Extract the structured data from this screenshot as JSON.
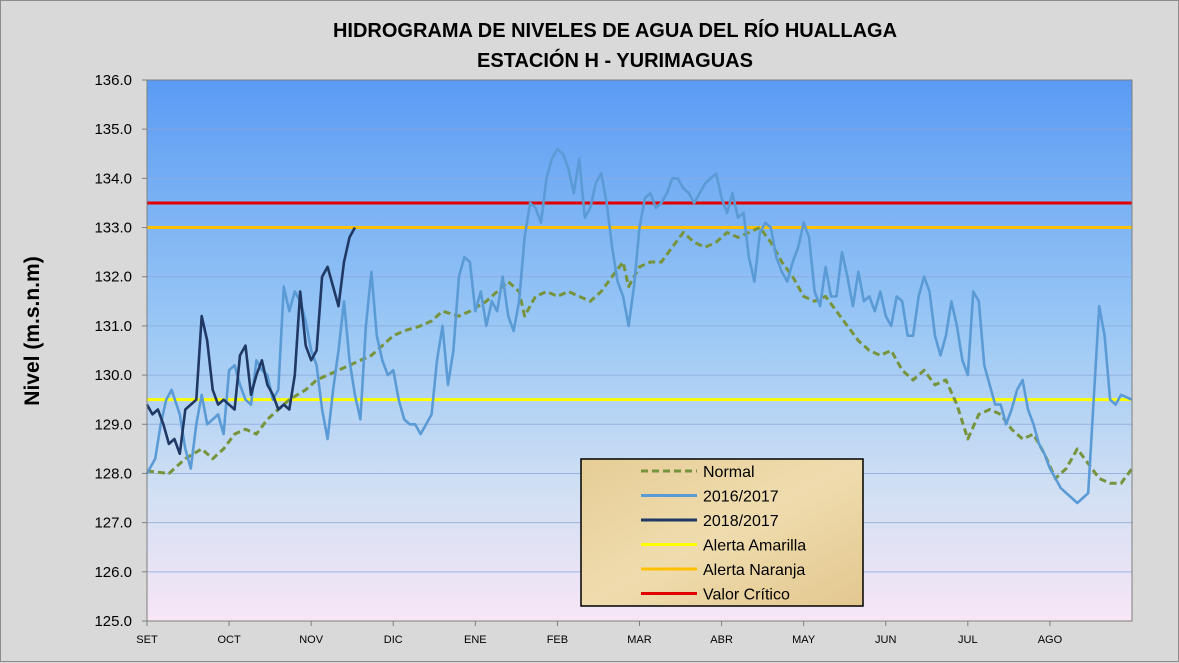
{
  "chart_data": {
    "type": "line",
    "title": "HIDROGRAMA DE NIVELES DE AGUA DEL RÍO HUALLAGA",
    "subtitle": "ESTACIÓN H - YURIMAGUAS",
    "ylabel": "Nivel (m.s.n.m)",
    "ylim": [
      125.0,
      136.0
    ],
    "yticks": [
      "125.0",
      "126.0",
      "127.0",
      "128.0",
      "129.0",
      "130.0",
      "131.0",
      "132.0",
      "133.0",
      "134.0",
      "135.0",
      "136.0"
    ],
    "months": [
      "SET",
      "OCT",
      "NOV",
      "DIC",
      "ENE",
      "FEB",
      "MAR",
      "ABR",
      "MAY",
      "JUN",
      "JUL",
      "AGO"
    ],
    "xrange_days": [
      0,
      360
    ],
    "grid": true,
    "legend_position": "bottom-center",
    "thresholds": [
      {
        "name": "Alerta Amarilla",
        "value": 129.5,
        "color": "#ffff00"
      },
      {
        "name": "Alerta Naranja",
        "value": 133.0,
        "color": "#ffc000"
      },
      {
        "name": "Valor Crítico",
        "value": 133.5,
        "color": "#e00000"
      }
    ],
    "series": [
      {
        "name": "Normal",
        "color": "#77933c",
        "dash": true,
        "points": [
          [
            0,
            128.05
          ],
          [
            8,
            128.0
          ],
          [
            14,
            128.3
          ],
          [
            20,
            128.5
          ],
          [
            24,
            128.3
          ],
          [
            28,
            128.5
          ],
          [
            32,
            128.8
          ],
          [
            36,
            128.9
          ],
          [
            40,
            128.8
          ],
          [
            44,
            129.1
          ],
          [
            48,
            129.3
          ],
          [
            52,
            129.5
          ],
          [
            58,
            129.7
          ],
          [
            62,
            129.9
          ],
          [
            66,
            130.0
          ],
          [
            70,
            130.1
          ],
          [
            74,
            130.2
          ],
          [
            78,
            130.3
          ],
          [
            82,
            130.4
          ],
          [
            86,
            130.6
          ],
          [
            90,
            130.8
          ],
          [
            94,
            130.9
          ],
          [
            100,
            131.0
          ],
          [
            104,
            131.1
          ],
          [
            108,
            131.3
          ],
          [
            114,
            131.2
          ],
          [
            118,
            131.3
          ],
          [
            124,
            131.5
          ],
          [
            128,
            131.7
          ],
          [
            132,
            131.9
          ],
          [
            136,
            131.7
          ],
          [
            138,
            131.2
          ],
          [
            142,
            131.6
          ],
          [
            146,
            131.7
          ],
          [
            150,
            131.6
          ],
          [
            154,
            131.7
          ],
          [
            158,
            131.6
          ],
          [
            162,
            131.5
          ],
          [
            166,
            131.7
          ],
          [
            170,
            132.0
          ],
          [
            174,
            132.3
          ],
          [
            176,
            131.8
          ],
          [
            180,
            132.2
          ],
          [
            184,
            132.3
          ],
          [
            188,
            132.3
          ],
          [
            192,
            132.6
          ],
          [
            196,
            132.9
          ],
          [
            200,
            132.7
          ],
          [
            204,
            132.6
          ],
          [
            208,
            132.7
          ],
          [
            212,
            132.9
          ],
          [
            216,
            132.8
          ],
          [
            220,
            132.9
          ],
          [
            224,
            133.0
          ],
          [
            228,
            132.7
          ],
          [
            232,
            132.3
          ],
          [
            236,
            132.0
          ],
          [
            240,
            131.6
          ],
          [
            244,
            131.5
          ],
          [
            248,
            131.6
          ],
          [
            252,
            131.3
          ],
          [
            256,
            131.0
          ],
          [
            260,
            130.7
          ],
          [
            264,
            130.5
          ],
          [
            268,
            130.4
          ],
          [
            272,
            130.5
          ],
          [
            276,
            130.1
          ],
          [
            280,
            129.9
          ],
          [
            284,
            130.1
          ],
          [
            288,
            129.8
          ],
          [
            292,
            129.9
          ],
          [
            296,
            129.4
          ],
          [
            300,
            128.7
          ],
          [
            304,
            129.2
          ],
          [
            308,
            129.3
          ],
          [
            312,
            129.2
          ],
          [
            316,
            128.9
          ],
          [
            320,
            128.7
          ],
          [
            324,
            128.8
          ],
          [
            328,
            128.4
          ],
          [
            332,
            127.9
          ],
          [
            336,
            128.1
          ],
          [
            340,
            128.5
          ],
          [
            344,
            128.2
          ],
          [
            348,
            127.9
          ],
          [
            352,
            127.8
          ],
          [
            356,
            127.8
          ],
          [
            360,
            128.1
          ]
        ]
      },
      {
        "name": "2016/2017",
        "color": "#5b9bd5",
        "dash": false,
        "points": [
          [
            0,
            128.0
          ],
          [
            3,
            128.3
          ],
          [
            5,
            129.0
          ],
          [
            7,
            129.5
          ],
          [
            9,
            129.7
          ],
          [
            12,
            129.2
          ],
          [
            14,
            128.5
          ],
          [
            16,
            128.1
          ],
          [
            18,
            129.0
          ],
          [
            20,
            129.6
          ],
          [
            22,
            129.0
          ],
          [
            24,
            129.1
          ],
          [
            26,
            129.2
          ],
          [
            28,
            128.8
          ],
          [
            30,
            130.1
          ],
          [
            32,
            130.2
          ],
          [
            34,
            129.8
          ],
          [
            36,
            129.5
          ],
          [
            38,
            129.4
          ],
          [
            40,
            130.3
          ],
          [
            42,
            130.1
          ],
          [
            44,
            130.0
          ],
          [
            46,
            129.5
          ],
          [
            48,
            129.7
          ],
          [
            50,
            131.8
          ],
          [
            52,
            131.3
          ],
          [
            54,
            131.7
          ],
          [
            56,
            131.5
          ],
          [
            58,
            131.1
          ],
          [
            60,
            130.5
          ],
          [
            62,
            130.2
          ],
          [
            64,
            129.3
          ],
          [
            66,
            128.7
          ],
          [
            68,
            129.7
          ],
          [
            70,
            130.5
          ],
          [
            72,
            131.5
          ],
          [
            74,
            130.3
          ],
          [
            76,
            129.6
          ],
          [
            78,
            129.1
          ],
          [
            80,
            131.0
          ],
          [
            82,
            132.1
          ],
          [
            84,
            130.8
          ],
          [
            86,
            130.3
          ],
          [
            88,
            130.0
          ],
          [
            90,
            130.1
          ],
          [
            92,
            129.5
          ],
          [
            94,
            129.1
          ],
          [
            96,
            129.0
          ],
          [
            98,
            129.0
          ],
          [
            100,
            128.8
          ],
          [
            102,
            129.0
          ],
          [
            104,
            129.2
          ],
          [
            106,
            130.3
          ],
          [
            108,
            131.0
          ],
          [
            110,
            129.8
          ],
          [
            112,
            130.5
          ],
          [
            114,
            132.0
          ],
          [
            116,
            132.4
          ],
          [
            118,
            132.3
          ],
          [
            120,
            131.3
          ],
          [
            122,
            131.7
          ],
          [
            124,
            131.0
          ],
          [
            126,
            131.5
          ],
          [
            128,
            131.3
          ],
          [
            130,
            132.0
          ],
          [
            132,
            131.2
          ],
          [
            134,
            130.9
          ],
          [
            136,
            131.5
          ],
          [
            138,
            132.8
          ],
          [
            140,
            133.5
          ],
          [
            142,
            133.4
          ],
          [
            144,
            133.1
          ],
          [
            146,
            134.0
          ],
          [
            148,
            134.4
          ],
          [
            150,
            134.6
          ],
          [
            152,
            134.5
          ],
          [
            154,
            134.2
          ],
          [
            156,
            133.7
          ],
          [
            158,
            134.4
          ],
          [
            160,
            133.2
          ],
          [
            162,
            133.4
          ],
          [
            164,
            133.9
          ],
          [
            166,
            134.1
          ],
          [
            168,
            133.5
          ],
          [
            170,
            132.6
          ],
          [
            172,
            131.9
          ],
          [
            174,
            131.6
          ],
          [
            176,
            131.0
          ],
          [
            178,
            131.8
          ],
          [
            180,
            133.0
          ],
          [
            182,
            133.6
          ],
          [
            184,
            133.7
          ],
          [
            186,
            133.4
          ],
          [
            188,
            133.5
          ],
          [
            190,
            133.7
          ],
          [
            192,
            134.0
          ],
          [
            194,
            134.0
          ],
          [
            196,
            133.8
          ],
          [
            198,
            133.7
          ],
          [
            200,
            133.5
          ],
          [
            202,
            133.7
          ],
          [
            204,
            133.9
          ],
          [
            206,
            134.0
          ],
          [
            208,
            134.1
          ],
          [
            210,
            133.6
          ],
          [
            212,
            133.3
          ],
          [
            214,
            133.7
          ],
          [
            216,
            133.2
          ],
          [
            218,
            133.3
          ],
          [
            220,
            132.4
          ],
          [
            222,
            131.9
          ],
          [
            224,
            132.9
          ],
          [
            226,
            133.1
          ],
          [
            228,
            133.0
          ],
          [
            230,
            132.4
          ],
          [
            232,
            132.1
          ],
          [
            234,
            131.9
          ],
          [
            236,
            132.3
          ],
          [
            238,
            132.6
          ],
          [
            240,
            133.1
          ],
          [
            242,
            132.8
          ],
          [
            244,
            131.7
          ],
          [
            246,
            131.4
          ],
          [
            248,
            132.2
          ],
          [
            250,
            131.6
          ],
          [
            252,
            131.6
          ],
          [
            254,
            132.5
          ],
          [
            256,
            132.0
          ],
          [
            258,
            131.4
          ],
          [
            260,
            132.1
          ],
          [
            262,
            131.5
          ],
          [
            264,
            131.6
          ],
          [
            266,
            131.3
          ],
          [
            268,
            131.7
          ],
          [
            270,
            131.2
          ],
          [
            272,
            131.0
          ],
          [
            274,
            131.6
          ],
          [
            276,
            131.5
          ],
          [
            278,
            130.8
          ],
          [
            280,
            130.8
          ],
          [
            282,
            131.6
          ],
          [
            284,
            132.0
          ],
          [
            286,
            131.7
          ],
          [
            288,
            130.8
          ],
          [
            290,
            130.4
          ],
          [
            292,
            130.8
          ],
          [
            294,
            131.5
          ],
          [
            296,
            131.0
          ],
          [
            298,
            130.3
          ],
          [
            300,
            130.0
          ],
          [
            302,
            131.7
          ],
          [
            304,
            131.5
          ],
          [
            306,
            130.2
          ],
          [
            308,
            129.8
          ],
          [
            310,
            129.4
          ],
          [
            312,
            129.4
          ],
          [
            314,
            129.0
          ],
          [
            316,
            129.3
          ],
          [
            318,
            129.7
          ],
          [
            320,
            129.9
          ],
          [
            322,
            129.3
          ],
          [
            324,
            129.0
          ],
          [
            326,
            128.6
          ],
          [
            328,
            128.4
          ],
          [
            330,
            128.1
          ],
          [
            332,
            127.9
          ],
          [
            334,
            127.7
          ],
          [
            336,
            127.6
          ],
          [
            338,
            127.5
          ],
          [
            340,
            127.4
          ],
          [
            342,
            127.5
          ],
          [
            344,
            127.6
          ],
          [
            346,
            129.5
          ],
          [
            348,
            131.4
          ],
          [
            350,
            130.8
          ],
          [
            352,
            129.5
          ],
          [
            354,
            129.4
          ],
          [
            356,
            129.6
          ],
          [
            360,
            129.5
          ]
        ]
      },
      {
        "name": "2018/2017",
        "color": "#1f3864",
        "dash": false,
        "points": [
          [
            0,
            129.4
          ],
          [
            2,
            129.2
          ],
          [
            4,
            129.3
          ],
          [
            6,
            129.0
          ],
          [
            8,
            128.6
          ],
          [
            10,
            128.7
          ],
          [
            12,
            128.4
          ],
          [
            14,
            129.3
          ],
          [
            16,
            129.4
          ],
          [
            18,
            129.5
          ],
          [
            20,
            131.2
          ],
          [
            22,
            130.7
          ],
          [
            24,
            129.7
          ],
          [
            26,
            129.4
          ],
          [
            28,
            129.5
          ],
          [
            30,
            129.4
          ],
          [
            32,
            129.3
          ],
          [
            34,
            130.4
          ],
          [
            36,
            130.6
          ],
          [
            38,
            129.6
          ],
          [
            40,
            130.0
          ],
          [
            42,
            130.3
          ],
          [
            44,
            129.8
          ],
          [
            46,
            129.6
          ],
          [
            48,
            129.3
          ],
          [
            50,
            129.4
          ],
          [
            52,
            129.3
          ],
          [
            54,
            130.0
          ],
          [
            56,
            131.7
          ],
          [
            58,
            130.6
          ],
          [
            60,
            130.3
          ],
          [
            62,
            130.5
          ],
          [
            64,
            132.0
          ],
          [
            66,
            132.2
          ],
          [
            68,
            131.8
          ],
          [
            70,
            131.4
          ],
          [
            72,
            132.3
          ],
          [
            74,
            132.8
          ],
          [
            76,
            133.0
          ]
        ]
      }
    ],
    "legend": [
      "Normal",
      "2016/2017",
      "2018/2017",
      "Alerta Amarilla",
      "Alerta Naranja",
      "Valor Crítico"
    ]
  }
}
